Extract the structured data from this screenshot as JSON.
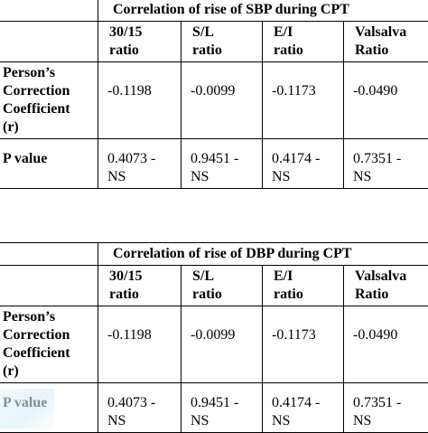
{
  "tables": [
    {
      "title": "Correlation of rise of SBP during  CPT",
      "columns": [
        [
          "30/15",
          "ratio"
        ],
        [
          "S/L",
          "ratio"
        ],
        [
          "E/I",
          "ratio"
        ],
        [
          "Valsalva",
          "Ratio"
        ]
      ],
      "coef_label": [
        "Person’s",
        "Correction",
        "Coefficient",
        "(r)"
      ],
      "coef_values": [
        "-0.1198",
        "-0.0099",
        "-0.1173",
        "-0.0490"
      ],
      "p_label": "P value",
      "p_values": [
        [
          "0.4073  -",
          "NS"
        ],
        [
          "0.9451  -",
          "NS"
        ],
        [
          "0.4174  -",
          "NS"
        ],
        [
          "0.7351  -",
          "NS"
        ]
      ]
    },
    {
      "title": "Correlation of rise of DBP during  CPT",
      "columns": [
        [
          "30/15",
          "ratio"
        ],
        [
          "S/L",
          "ratio"
        ],
        [
          "E/I",
          "ratio"
        ],
        [
          "Valsalva",
          "Ratio"
        ]
      ],
      "coef_label": [
        "Person’s",
        "Correction",
        "Coefficient",
        "(r)"
      ],
      "coef_values": [
        "-0.1198",
        "-0.0099",
        "-0.1173",
        "-0.0490"
      ],
      "p_label": "P value",
      "p_values": [
        [
          "0.4073  -",
          "NS"
        ],
        [
          "0.9451  -",
          "NS"
        ],
        [
          "0.4174  -",
          "NS"
        ],
        [
          "0.7351  -",
          "NS"
        ]
      ]
    }
  ]
}
